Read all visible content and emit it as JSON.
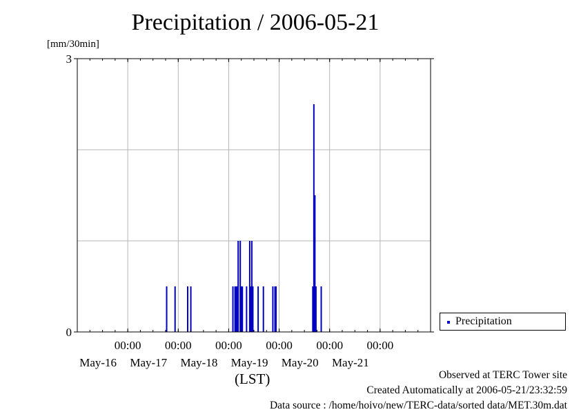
{
  "title": "Precipitation / 2006-05-21",
  "ylabel": "[mm/30min]",
  "xlabel": "(LST)",
  "colors": {
    "series": "#0000c0",
    "grid": "#b4b4b4",
    "axis": "#000000"
  },
  "footer": {
    "line1": "Observed at TERC Tower site",
    "line2": "Created Automatically at 2006-05-21/23:32:59",
    "line3": "Data source : /home/hoivo/new/TERC-data/sorted  data/MET.30m.dat"
  },
  "chart_data": {
    "type": "bar",
    "title": "Precipitation / 2006-05-21",
    "ylabel": "[mm/30min]",
    "xlabel": "(LST)",
    "ylim": [
      0,
      3
    ],
    "yticks": [
      0,
      3
    ],
    "grid": true,
    "legend_position": "right",
    "xlim": [
      "2006-05-15 00:00",
      "2006-05-22 00:00"
    ],
    "xticks": [
      {
        "time": "2006-05-16 00:00",
        "label": "00:00",
        "date": "May-16"
      },
      {
        "time": "2006-05-17 00:00",
        "label": "00:00",
        "date": "May-17"
      },
      {
        "time": "2006-05-18 00:00",
        "label": "00:00",
        "date": "May-18"
      },
      {
        "time": "2006-05-19 00:00",
        "label": "00:00",
        "date": "May-19"
      },
      {
        "time": "2006-05-20 00:00",
        "label": "00:00",
        "date": "May-20"
      },
      {
        "time": "2006-05-21 00:00",
        "label": "00:00",
        "date": "May-21"
      }
    ],
    "series": [
      {
        "name": "Precipitation",
        "points": [
          {
            "t": "2006-05-16 18:30",
            "v": 0.5
          },
          {
            "t": "2006-05-16 22:30",
            "v": 0.5
          },
          {
            "t": "2006-05-17 04:30",
            "v": 0.5
          },
          {
            "t": "2006-05-17 06:00",
            "v": 0.5
          },
          {
            "t": "2006-05-18 02:00",
            "v": 0.5
          },
          {
            "t": "2006-05-18 03:00",
            "v": 0.5
          },
          {
            "t": "2006-05-18 03:30",
            "v": 0.5
          },
          {
            "t": "2006-05-18 04:00",
            "v": 0.5
          },
          {
            "t": "2006-05-18 04:30",
            "v": 1.0
          },
          {
            "t": "2006-05-18 05:30",
            "v": 1.0
          },
          {
            "t": "2006-05-18 06:00",
            "v": 0.5
          },
          {
            "t": "2006-05-18 06:30",
            "v": 0.5
          },
          {
            "t": "2006-05-18 08:30",
            "v": 0.5
          },
          {
            "t": "2006-05-18 10:00",
            "v": 1.0
          },
          {
            "t": "2006-05-18 10:30",
            "v": 0.5
          },
          {
            "t": "2006-05-18 11:00",
            "v": 1.0
          },
          {
            "t": "2006-05-18 11:30",
            "v": 0.5
          },
          {
            "t": "2006-05-18 14:00",
            "v": 0.5
          },
          {
            "t": "2006-05-18 16:30",
            "v": 0.5
          },
          {
            "t": "2006-05-18 21:00",
            "v": 0.5
          },
          {
            "t": "2006-05-18 22:00",
            "v": 0.5
          },
          {
            "t": "2006-05-18 22:30",
            "v": 0.5
          },
          {
            "t": "2006-05-19 16:00",
            "v": 0.5
          },
          {
            "t": "2006-05-19 16:30",
            "v": 2.5
          },
          {
            "t": "2006-05-19 17:00",
            "v": 1.5
          },
          {
            "t": "2006-05-19 17:30",
            "v": 0.5
          },
          {
            "t": "2006-05-19 20:00",
            "v": 0.5
          }
        ]
      }
    ]
  }
}
